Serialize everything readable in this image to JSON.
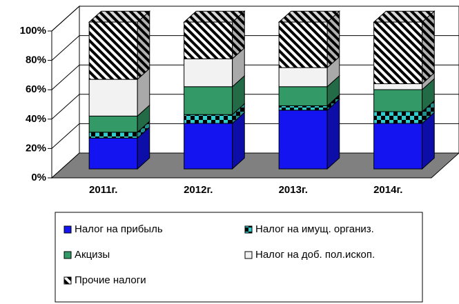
{
  "chart_data": {
    "type": "bar3d_stacked",
    "categories": [
      "2011г.",
      "2012г.",
      "2013г.",
      "2014г."
    ],
    "series": [
      {
        "name": "Налог на прибыль",
        "color": "#1414f0",
        "values": [
          21,
          31,
          40,
          31
        ]
      },
      {
        "name": "Налог на имущ. организ.",
        "color": "#33cccc",
        "pattern": "checker",
        "values": [
          4,
          6,
          3,
          8
        ]
      },
      {
        "name": "Акцизы",
        "color": "#339966",
        "values": [
          11,
          19,
          13,
          15
        ]
      },
      {
        "name": "Налог на доб. пол.ископ.",
        "color": "#f2f2f2",
        "values": [
          25,
          19,
          13,
          4
        ]
      },
      {
        "name": "Прочие налоги",
        "color": "#ffffff",
        "pattern": "hatch",
        "values": [
          39,
          25,
          31,
          42
        ]
      }
    ],
    "ylim": [
      0,
      100
    ],
    "yticks": [
      {
        "value": 0,
        "label": "0%"
      },
      {
        "value": 20,
        "label": "20%"
      },
      {
        "value": 40,
        "label": "40%"
      },
      {
        "value": 60,
        "label": "60%"
      },
      {
        "value": 80,
        "label": "80%"
      },
      {
        "value": 100,
        "label": "100%"
      }
    ],
    "grid": true,
    "legend": "bottom"
  }
}
